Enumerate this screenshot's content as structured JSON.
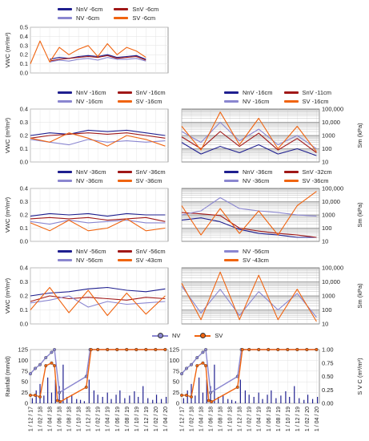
{
  "colors": {
    "NnV": "#1f1f8f",
    "SnV": "#a01818",
    "NV": "#8a86d0",
    "SV": "#f06410"
  },
  "x_ticks": [
    "1 / 12 / 17",
    "1 / 02 / 18",
    "1 / 04 / 18",
    "1 / 06 / 18",
    "1 / 08 / 18",
    "1 / 10 / 18",
    "1 / 12 / 18",
    "1 / 02 / 19",
    "1 / 04 / 19",
    "1 / 06 / 19",
    "1 / 08 / 19",
    "1 / 10 / 19",
    "1 / 12 / 19",
    "1 / 02 / 20",
    "1 / 04 / 20"
  ],
  "legends": {
    "p1": [
      "NnV -6cm",
      "SnV -6cm",
      "NV -6cm",
      "SV -6cm"
    ],
    "p2": [
      "NnV -16cm",
      "SnV -16cm",
      "NV -16cm",
      "SV -16cm"
    ],
    "p2r": [
      "NnV -16cm",
      "SnV -11cm",
      "NV -16cm",
      "SV -16cm"
    ],
    "p3": [
      "NnV -36cm",
      "SnV -36cm",
      "NV -36cm",
      "SV -36cm"
    ],
    "p3r": [
      "NnV -36cm",
      "SnV -32cm",
      "NV -36cm",
      "SV -36cm"
    ],
    "p4": [
      "NnV -56cm",
      "SnV -56cm",
      "NV -56cm",
      "SV -43cm"
    ],
    "p4r": [
      "NV -56cm",
      "SV -43cm"
    ],
    "bottom": [
      "NV",
      "SV"
    ]
  },
  "axis_labels": {
    "vwc": "VWC (m³/m³)",
    "sm": "Sm (kPa)",
    "rain": "Rainfall (mm/d)",
    "svc": "S V C (m²/m²)"
  },
  "chart_data": [
    {
      "type": "line",
      "panel": "VWC -6cm",
      "ylabel": "VWC (m³/m³)",
      "ylim": [
        0,
        0.5
      ],
      "yticks": [
        "0.0",
        "0.1",
        "0.2",
        "0.3",
        "0.4",
        "0.5"
      ],
      "series": [
        {
          "name": "NnV -6cm",
          "x": [
            2,
            3,
            4,
            5,
            6,
            7,
            8,
            9,
            10,
            11,
            12
          ],
          "values": [
            0.15,
            0.17,
            0.16,
            0.18,
            0.19,
            0.18,
            0.2,
            0.17,
            0.18,
            0.19,
            0.15
          ]
        },
        {
          "name": "SnV -6cm",
          "x": [
            2,
            3,
            4,
            5,
            6,
            7,
            8,
            9,
            10,
            11,
            12
          ],
          "values": [
            0.13,
            0.15,
            0.16,
            0.17,
            0.18,
            0.17,
            0.19,
            0.16,
            0.17,
            0.18,
            0.14
          ]
        },
        {
          "name": "NV -6cm",
          "x": [
            2,
            3,
            4,
            5,
            6,
            7,
            8,
            9,
            10,
            11,
            12
          ],
          "values": [
            0.12,
            0.14,
            0.13,
            0.15,
            0.16,
            0.14,
            0.17,
            0.15,
            0.15,
            0.16,
            0.13
          ]
        },
        {
          "name": "SV -6cm",
          "x": [
            0,
            1,
            2,
            3,
            4,
            5,
            6,
            7,
            8,
            9,
            10,
            11,
            12
          ],
          "values": [
            0.1,
            0.35,
            0.12,
            0.28,
            0.2,
            0.26,
            0.3,
            0.18,
            0.32,
            0.2,
            0.28,
            0.24,
            0.17
          ]
        }
      ]
    },
    {
      "type": "line",
      "panel": "VWC -16cm",
      "ylabel": "VWC (m³/m³)",
      "ylim": [
        0,
        0.4
      ],
      "yticks": [
        "0.0",
        "0.1",
        "0.2",
        "0.3",
        "0.4"
      ],
      "series": [
        {
          "name": "NnV -16cm",
          "x": [
            0,
            2,
            4,
            6,
            8,
            10,
            12,
            14
          ],
          "values": [
            0.2,
            0.22,
            0.21,
            0.24,
            0.23,
            0.24,
            0.22,
            0.2
          ]
        },
        {
          "name": "SnV -16cm",
          "x": [
            0,
            2,
            4,
            6,
            8,
            10,
            12,
            14
          ],
          "values": [
            0.18,
            0.2,
            0.21,
            0.22,
            0.21,
            0.22,
            0.2,
            0.18
          ]
        },
        {
          "name": "NV -16cm",
          "x": [
            0,
            2,
            4,
            6,
            8,
            10,
            12,
            14
          ],
          "values": [
            0.17,
            0.15,
            0.13,
            0.17,
            0.15,
            0.16,
            0.15,
            0.16
          ]
        },
        {
          "name": "SV -16cm",
          "x": [
            0,
            2,
            4,
            6,
            8,
            10,
            12,
            14
          ],
          "values": [
            0.18,
            0.15,
            0.22,
            0.18,
            0.12,
            0.2,
            0.17,
            0.12
          ]
        }
      ]
    },
    {
      "type": "line",
      "panel": "VWC -36cm",
      "ylabel": "VWC (m³/m³)",
      "ylim": [
        0,
        0.4
      ],
      "yticks": [
        "0.0",
        "0.1",
        "0.2",
        "0.3",
        "0.4"
      ],
      "series": [
        {
          "name": "NnV -36cm",
          "x": [
            0,
            2,
            4,
            6,
            8,
            10,
            12,
            14
          ],
          "values": [
            0.19,
            0.21,
            0.2,
            0.21,
            0.19,
            0.21,
            0.2,
            0.2
          ]
        },
        {
          "name": "SnV -36cm",
          "x": [
            0,
            2,
            4,
            6,
            8,
            10,
            12,
            14
          ],
          "values": [
            0.17,
            0.18,
            0.17,
            0.18,
            0.16,
            0.17,
            0.18,
            0.15
          ]
        },
        {
          "name": "NV -36cm",
          "x": [
            0,
            2,
            4,
            6,
            8,
            10,
            12,
            14
          ],
          "values": [
            0.15,
            0.13,
            0.16,
            0.14,
            0.15,
            0.16,
            0.14,
            0.14
          ]
        },
        {
          "name": "SV -36cm",
          "x": [
            0,
            2,
            4,
            6,
            8,
            10,
            12,
            14
          ],
          "values": [
            0.14,
            0.08,
            0.16,
            0.08,
            0.1,
            0.17,
            0.08,
            0.1
          ]
        }
      ]
    },
    {
      "type": "line",
      "panel": "VWC -56cm",
      "ylabel": "VWC (m³/m³)",
      "ylim": [
        0,
        0.4
      ],
      "yticks": [
        "0.0",
        "0.1",
        "0.2",
        "0.3",
        "0.4"
      ],
      "series": [
        {
          "name": "NnV -56cm",
          "x": [
            0,
            2,
            4,
            6,
            8,
            10,
            12,
            14
          ],
          "values": [
            0.2,
            0.22,
            0.23,
            0.25,
            0.26,
            0.24,
            0.23,
            0.25
          ]
        },
        {
          "name": "SnV -56cm",
          "x": [
            0,
            2,
            4,
            6,
            8,
            10,
            12,
            14
          ],
          "values": [
            0.16,
            0.2,
            0.18,
            0.19,
            0.18,
            0.17,
            0.19,
            0.18
          ]
        },
        {
          "name": "NV -56cm",
          "x": [
            0,
            2,
            4,
            6,
            8,
            10,
            12,
            14
          ],
          "values": [
            0.15,
            0.17,
            0.2,
            0.12,
            0.16,
            0.14,
            0.15,
            0.16
          ]
        },
        {
          "name": "SV -43cm",
          "x": [
            0,
            2,
            4,
            6,
            8,
            10,
            12,
            14
          ],
          "values": [
            0.1,
            0.26,
            0.08,
            0.24,
            0.06,
            0.22,
            0.07,
            0.2
          ]
        }
      ]
    },
    {
      "type": "line",
      "panel": "Sm -16cm",
      "ylabel": "Sm (kPa)",
      "yscale": "log",
      "ylim": [
        10,
        100000
      ],
      "yticks": [
        "10",
        "100",
        "1000",
        "10,000",
        "100,000"
      ],
      "series": [
        {
          "name": "NnV -16cm",
          "x": [
            0,
            2,
            4,
            6,
            8,
            10,
            12,
            14
          ],
          "values": [
            300,
            40,
            150,
            50,
            200,
            40,
            100,
            30
          ]
        },
        {
          "name": "SnV -11cm",
          "x": [
            0,
            2,
            4,
            6,
            8,
            10,
            12,
            14
          ],
          "values": [
            800,
            100,
            2000,
            150,
            1500,
            80,
            600,
            50
          ]
        },
        {
          "name": "NV -16cm",
          "x": [
            0,
            2,
            4,
            6,
            8,
            10,
            12,
            14
          ],
          "values": [
            2000,
            300,
            10000,
            400,
            3000,
            200,
            1000,
            100
          ]
        },
        {
          "name": "SV -16cm",
          "x": [
            0,
            2,
            4,
            6,
            8,
            10,
            12,
            14
          ],
          "values": [
            5000,
            80,
            60000,
            200,
            20000,
            100,
            5000,
            60
          ]
        }
      ]
    },
    {
      "type": "line",
      "panel": "Sm -36cm",
      "ylabel": "Sm (kPa)",
      "yscale": "log",
      "ylim": [
        10,
        100000
      ],
      "yticks": [
        "10",
        "100",
        "1000",
        "10,000",
        "100,000"
      ],
      "series": [
        {
          "name": "NnV -36cm",
          "x": [
            0,
            2,
            4,
            6,
            8,
            10,
            12,
            14
          ],
          "values": [
            400,
            600,
            300,
            80,
            40,
            30,
            20,
            20
          ]
        },
        {
          "name": "SnV -32cm",
          "x": [
            0,
            2,
            4,
            6,
            8,
            10,
            12,
            14
          ],
          "values": [
            1500,
            1200,
            900,
            100,
            60,
            40,
            30,
            20
          ]
        },
        {
          "name": "NV -36cm",
          "x": [
            0,
            2,
            4,
            6,
            8,
            10,
            12,
            14
          ],
          "values": [
            1000,
            2000,
            20000,
            3000,
            2000,
            1500,
            1000,
            800
          ]
        },
        {
          "name": "SV -36cm",
          "x": [
            0,
            2,
            4,
            6,
            8,
            10,
            12,
            14
          ],
          "values": [
            5000,
            30,
            3000,
            40,
            2000,
            30,
            5000,
            60000
          ]
        }
      ]
    },
    {
      "type": "line",
      "panel": "Sm deep",
      "ylabel": "Sm (kPa)",
      "yscale": "log",
      "ylim": [
        10,
        100000
      ],
      "yticks": [
        "10",
        "100",
        "1000",
        "10,000",
        "100,000"
      ],
      "series": [
        {
          "name": "NV -56cm",
          "x": [
            0,
            2,
            4,
            6,
            8,
            10,
            12,
            14
          ],
          "values": [
            5000,
            60,
            3000,
            40,
            2000,
            100,
            1500,
            30
          ]
        },
        {
          "name": "SV -43cm",
          "x": [
            0,
            2,
            4,
            6,
            8,
            10,
            12,
            14
          ],
          "values": [
            8000,
            20,
            50000,
            20,
            30000,
            20,
            3000,
            15
          ]
        }
      ]
    },
    {
      "type": "bar",
      "panel": "Rainfall left",
      "ylabel": "Rainfall (mm/d)",
      "ylim": [
        0,
        125
      ],
      "yticks": [
        "0",
        "25",
        "50",
        "75",
        "100",
        "125"
      ],
      "x": [
        0.2,
        0.6,
        1.0,
        1.4,
        1.8,
        2.2,
        2.6,
        3.0,
        3.4,
        3.8,
        4.3,
        4.8,
        5.2,
        5.6,
        6.1,
        6.6,
        7.0,
        7.5,
        8.0,
        8.4,
        8.9,
        9.3,
        9.8,
        10.3,
        10.8,
        11.2,
        11.7,
        12.2,
        12.7,
        13.1,
        13.6,
        14.1
      ],
      "values": [
        12,
        30,
        45,
        18,
        60,
        25,
        55,
        40,
        90,
        15,
        20,
        10,
        8,
        5,
        55,
        30,
        20,
        15,
        25,
        10,
        20,
        30,
        12,
        18,
        28,
        15,
        40,
        12,
        8,
        20,
        10,
        15
      ]
    },
    {
      "type": "bar",
      "panel": "Rainfall right",
      "ylabel": "Rainfall (mm/d)",
      "ylim": [
        0,
        125
      ],
      "yticks": [
        "0",
        "25",
        "50",
        "75",
        "100",
        "125"
      ],
      "x": [
        0.2,
        0.6,
        1.0,
        1.4,
        1.8,
        2.2,
        2.6,
        3.0,
        3.4,
        3.8,
        4.3,
        4.8,
        5.2,
        5.6,
        6.1,
        6.6,
        7.0,
        7.5,
        8.0,
        8.4,
        8.9,
        9.3,
        9.8,
        10.3,
        10.8,
        11.2,
        11.7,
        12.2,
        12.7,
        13.1,
        13.6,
        14.1
      ],
      "values": [
        12,
        30,
        45,
        18,
        60,
        25,
        55,
        40,
        90,
        15,
        20,
        10,
        8,
        5,
        55,
        30,
        20,
        15,
        25,
        10,
        20,
        30,
        12,
        18,
        28,
        15,
        40,
        12,
        8,
        20,
        10,
        15
      ]
    },
    {
      "type": "line",
      "panel": "SVC",
      "ylabel": "S V C (m²/m²)",
      "ylim": [
        0,
        1.0
      ],
      "yticks": [
        "0.00",
        "0.25",
        "0.50",
        "0.75",
        "1.00"
      ],
      "series": [
        {
          "name": "NV",
          "x": [
            0,
            0.5,
            1.0,
            1.6,
            2.2,
            2.5,
            3.0,
            5.8,
            6.2,
            7,
            8,
            9,
            10,
            11,
            12,
            13,
            14
          ],
          "values": [
            0.55,
            0.65,
            0.72,
            0.85,
            0.95,
            1.0,
            0.2,
            0.5,
            1.0,
            1.0,
            1.0,
            1.0,
            1.0,
            1.0,
            1.0,
            1.0,
            1.0
          ]
        },
        {
          "name": "SV",
          "x": [
            0,
            0.5,
            1.0,
            1.6,
            2.2,
            2.5,
            2.8,
            3.1,
            5.8,
            6.3,
            7,
            8,
            9,
            10,
            11,
            12,
            13,
            14
          ],
          "values": [
            0.15,
            0.15,
            0.12,
            0.7,
            0.75,
            0.7,
            0.05,
            0.03,
            0.3,
            1.0,
            1.0,
            1.0,
            1.0,
            1.0,
            1.0,
            1.0,
            1.0,
            1.0
          ]
        }
      ]
    }
  ]
}
